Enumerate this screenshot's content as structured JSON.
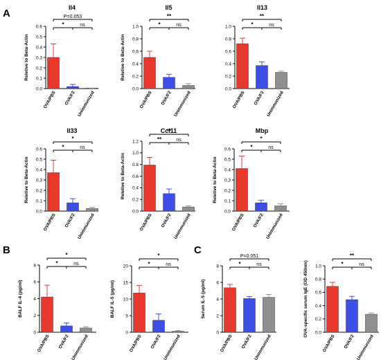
{
  "panels": [
    {
      "letter": "A"
    },
    {
      "letter": "B"
    },
    {
      "letter": "C"
    }
  ],
  "colors": {
    "OVA/PBS": "#e8382e",
    "OVA/F2": "#3d4ee6",
    "Unimmunized": "#8f8f8f"
  },
  "chart_data": [
    {
      "type": "bar",
      "panel": "A",
      "title": "Il4",
      "ylabel": "Reletive to Beta-Actin",
      "categories": [
        "OVA/PBS",
        "OVA/F2",
        "Unimmunized"
      ],
      "values": [
        0.3,
        0.02,
        0.003
      ],
      "errors": [
        0.13,
        0.02,
        0.002
      ],
      "ylim": [
        0.0,
        0.6
      ],
      "yticks": [
        "0.0",
        "0.1",
        "0.2",
        "0.3",
        "0.4",
        "0.5",
        "0.6"
      ],
      "annotations": [
        {
          "text": "P=0.053",
          "from": 0,
          "to": 2,
          "level": 2
        },
        {
          "text": "*",
          "from": 0,
          "to": 1,
          "level": 1
        },
        {
          "text": "ns",
          "from": 1,
          "to": 2,
          "level": 1
        }
      ]
    },
    {
      "type": "bar",
      "panel": "A",
      "title": "Il5",
      "ylabel": "Reletive to Beta-Actin",
      "categories": [
        "OVA/PBS",
        "OVA/F2",
        "Unimmunized"
      ],
      "values": [
        0.5,
        0.18,
        0.05
      ],
      "errors": [
        0.1,
        0.05,
        0.03
      ],
      "ylim": [
        0.0,
        1.0
      ],
      "yticks": [
        "0.0",
        "0.2",
        "0.4",
        "0.6",
        "0.8",
        "1.0"
      ],
      "annotations": [
        {
          "text": "**",
          "from": 0,
          "to": 2,
          "level": 2
        },
        {
          "text": "*",
          "from": 0,
          "to": 1,
          "level": 1
        },
        {
          "text": "ns",
          "from": 1,
          "to": 2,
          "level": 1
        }
      ]
    },
    {
      "type": "bar",
      "panel": "A",
      "title": "Il13",
      "ylabel": "",
      "categories": [
        "OVA/PBS",
        "OVA/F2",
        "Unimmunized"
      ],
      "values": [
        0.72,
        0.37,
        0.26
      ],
      "errors": [
        0.09,
        0.06,
        0.02
      ],
      "ylim": [
        0.0,
        1.0
      ],
      "yticks": [
        "0.0",
        "0.2",
        "0.4",
        "0.6",
        "0.8",
        "1.0"
      ],
      "annotations": [
        {
          "text": "**",
          "from": 0,
          "to": 2,
          "level": 2
        },
        {
          "text": "*",
          "from": 0,
          "to": 1,
          "level": 1
        },
        {
          "text": "ns",
          "from": 1,
          "to": 2,
          "level": 1
        }
      ]
    },
    {
      "type": "bar",
      "panel": "A",
      "title": "Il33",
      "ylabel": "Reletive to Beta-Actin",
      "categories": [
        "OVA/PBS",
        "OVA/F2",
        "Unimmunized"
      ],
      "values": [
        0.37,
        0.08,
        0.025
      ],
      "errors": [
        0.12,
        0.04,
        0.012
      ],
      "ylim": [
        0.0,
        0.6
      ],
      "yticks": [
        "0.0",
        "0.1",
        "0.2",
        "0.3",
        "0.4",
        "0.5",
        "0.6"
      ],
      "annotations": [
        {
          "text": "*",
          "from": 0,
          "to": 2,
          "level": 2
        },
        {
          "text": "*",
          "from": 0,
          "to": 1,
          "level": 1
        },
        {
          "text": "ns",
          "from": 1,
          "to": 2,
          "level": 1
        }
      ]
    },
    {
      "type": "bar",
      "panel": "A",
      "title": "Ccl11",
      "ylabel": "Reletive to Beta-Actin",
      "categories": [
        "OVA/PBS",
        "OVA/F2",
        "Unimmunized"
      ],
      "values": [
        0.79,
        0.3,
        0.07
      ],
      "errors": [
        0.13,
        0.08,
        0.02
      ],
      "ylim": [
        0.0,
        1.2
      ],
      "yticks": [
        "0.0",
        "0.2",
        "0.4",
        "0.6",
        "0.8",
        "1.0",
        "1.2"
      ],
      "annotations": [
        {
          "text": "**",
          "from": 0,
          "to": 2,
          "level": 2
        },
        {
          "text": "**",
          "from": 0,
          "to": 1,
          "level": 1
        },
        {
          "text": "ns",
          "from": 1,
          "to": 2,
          "level": 1
        }
      ]
    },
    {
      "type": "bar",
      "panel": "A",
      "title": "Mbp",
      "ylabel": "Reletive to Beta-Actin",
      "categories": [
        "OVA/PBS",
        "OVA/F2",
        "Unimmunized"
      ],
      "values": [
        0.41,
        0.08,
        0.05
      ],
      "errors": [
        0.12,
        0.025,
        0.02
      ],
      "ylim": [
        0.0,
        0.6
      ],
      "yticks": [
        "0.0",
        "0.1",
        "0.2",
        "0.3",
        "0.4",
        "0.5",
        "0.6"
      ],
      "annotations": [
        {
          "text": "*",
          "from": 0,
          "to": 2,
          "level": 2
        },
        {
          "text": "*",
          "from": 0,
          "to": 1,
          "level": 1
        },
        {
          "text": "ns",
          "from": 1,
          "to": 2,
          "level": 1
        }
      ]
    },
    {
      "type": "bar",
      "panel": "B",
      "title": "",
      "ylabel": "BALF IL-4 (pg/ml)",
      "categories": [
        "OVA/PBS",
        "OVA/F2",
        "Unimmunized"
      ],
      "values": [
        4.2,
        0.75,
        0.5
      ],
      "errors": [
        1.4,
        0.35,
        0.15
      ],
      "ylim": [
        0,
        8
      ],
      "yticks": [
        "0",
        "2",
        "4",
        "6",
        "8"
      ],
      "annotations": [
        {
          "text": "*",
          "from": 0,
          "to": 2,
          "level": 2
        },
        {
          "text": "*",
          "from": 0,
          "to": 1,
          "level": 1
        },
        {
          "text": "ns",
          "from": 1,
          "to": 2,
          "level": 1
        }
      ]
    },
    {
      "type": "bar",
      "panel": "B",
      "title": "",
      "ylabel": "BALF IL-5 (pg/ml)",
      "categories": [
        "OVA/PBS",
        "OVA/F2",
        "Unimmunized"
      ],
      "values": [
        11.8,
        3.6,
        0.3
      ],
      "errors": [
        2.3,
        1.9,
        0.2
      ],
      "ylim": [
        0,
        20
      ],
      "yticks": [
        "0",
        "5",
        "10",
        "15",
        "20"
      ],
      "annotations": [
        {
          "text": "*",
          "from": 0,
          "to": 2,
          "level": 2
        },
        {
          "text": "*",
          "from": 0,
          "to": 1,
          "level": 1
        },
        {
          "text": "ns",
          "from": 1,
          "to": 2,
          "level": 1
        }
      ]
    },
    {
      "type": "bar",
      "panel": "C",
      "title": "",
      "ylabel": "Serum IL-5 (pg/ml)",
      "categories": [
        "OVA/PBS",
        "OVA/F2",
        "Unimmunized"
      ],
      "values": [
        5.35,
        4.05,
        4.2
      ],
      "errors": [
        0.4,
        0.25,
        0.35
      ],
      "ylim": [
        0,
        8
      ],
      "yticks": [
        "0",
        "2",
        "4",
        "6",
        "8"
      ],
      "annotations": [
        {
          "text": "P=0.051",
          "from": 0,
          "to": 2,
          "level": 2
        },
        {
          "text": "*",
          "from": 0,
          "to": 1,
          "level": 1
        },
        {
          "text": "ns",
          "from": 1,
          "to": 2,
          "level": 1
        }
      ]
    },
    {
      "type": "bar",
      "panel": "C",
      "title": "",
      "ylabel": "OVA-specific serum IgE (OD 450nm)",
      "categories": [
        "OVA/PBS",
        "OVA/F2",
        "Unimmunized"
      ],
      "values": [
        0.69,
        0.49,
        0.27
      ],
      "errors": [
        0.06,
        0.05,
        0.02
      ],
      "ylim": [
        0.0,
        1.0
      ],
      "yticks": [
        "0.0",
        "0.2",
        "0.4",
        "0.6",
        "0.8",
        "1.0"
      ],
      "annotations": [
        {
          "text": "**",
          "from": 0,
          "to": 2,
          "level": 2
        },
        {
          "text": "*",
          "from": 0,
          "to": 1,
          "level": 1
        },
        {
          "text": "ns",
          "from": 1,
          "to": 2,
          "level": 1
        }
      ]
    }
  ]
}
